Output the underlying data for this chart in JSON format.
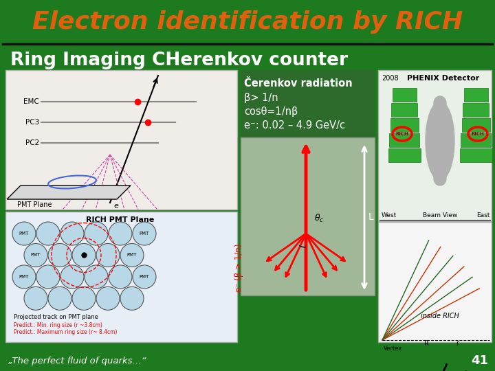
{
  "bg_color": "#1e7a1e",
  "title_text": "Electron identification by RICH",
  "title_color": "#e06010",
  "subtitle_text": "Ring Imaging CHerenkov counter",
  "subtitle_color": "#ffffff",
  "cherenkov_lines": [
    "Čerenkov radiation",
    "β> 1/n",
    "cosθ=1/nβ",
    "e⁻: 0.02 – 4.9 GeV/c"
  ],
  "side_label": "e⁻ (β > 1/n)",
  "footer_text": "„The perfect fluid of quarks…“",
  "footer_color": "#ffffff",
  "page_number": "41",
  "left_panel_bg": "#f0ede8",
  "left_panel_border": "#bbbbbb",
  "bot_panel_bg": "#e8eef5",
  "center_text_bg": "#2d6b2d",
  "arrow_box_bg": "#a0b898",
  "arrow_box_border": "#889080",
  "right_top_bg": "#e8f0e8",
  "right_bot_bg": "#f5f5f5"
}
